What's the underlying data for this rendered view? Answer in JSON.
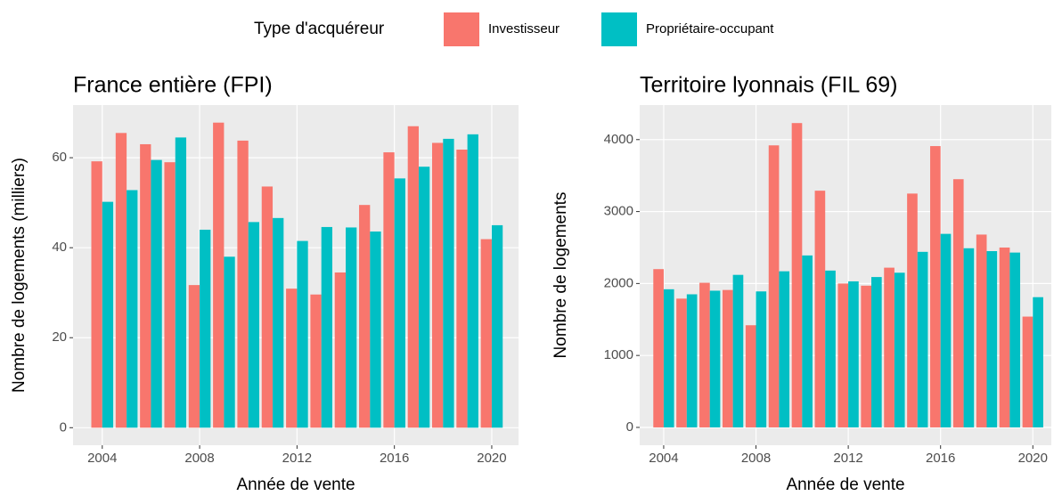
{
  "legend": {
    "title": "Type d'acquéreur"
  },
  "chart_data": [
    {
      "type": "bar",
      "title": "France entière (FPI)",
      "x_label": "Année de vente",
      "y_label": "Nombre de logements (milliers)",
      "x": [
        2004,
        2005,
        2006,
        2007,
        2008,
        2009,
        2010,
        2011,
        2012,
        2013,
        2014,
        2015,
        2016,
        2017,
        2018,
        2019,
        2020
      ],
      "series": [
        {
          "name": "Investisseur",
          "color": "#F8766D",
          "values": [
            59.2,
            65.5,
            63,
            59,
            31.7,
            67.8,
            63.8,
            53.6,
            30.9,
            29.6,
            34.5,
            49.5,
            61.2,
            67,
            63.3,
            61.8,
            41.9
          ]
        },
        {
          "name": "Propriétaire-occupant",
          "color": "#00BFC4",
          "values": [
            50.2,
            52.8,
            59.5,
            64.5,
            44,
            38,
            45.7,
            46.6,
            41.5,
            44.6,
            44.5,
            43.6,
            55.4,
            58,
            64.2,
            65.2,
            45
          ]
        }
      ],
      "xlim": [
        2002.8,
        2021.1
      ],
      "xticks": [
        2004,
        2008,
        2012,
        2016,
        2020
      ],
      "ylim": [
        -3.9,
        71.7
      ],
      "yticks": [
        0,
        20,
        40,
        60
      ],
      "grid": true
    },
    {
      "type": "bar",
      "title": "Territoire lyonnais (FIL 69)",
      "x_label": "Année de vente",
      "y_label": "Nombre de logements",
      "x": [
        2004,
        2005,
        2006,
        2007,
        2008,
        2009,
        2010,
        2011,
        2012,
        2013,
        2014,
        2015,
        2016,
        2017,
        2018,
        2019,
        2020
      ],
      "series": [
        {
          "name": "Investisseur",
          "color": "#F8766D",
          "values": [
            2200,
            1790,
            2010,
            1910,
            1420,
            3920,
            4230,
            3290,
            2000,
            1970,
            2220,
            3250,
            3910,
            3450,
            2680,
            2500,
            1540
          ]
        },
        {
          "name": "Propriétaire-occupant",
          "color": "#00BFC4",
          "values": [
            1920,
            1850,
            1900,
            2120,
            1890,
            2170,
            2390,
            2180,
            2030,
            2090,
            2150,
            2440,
            2690,
            2490,
            2450,
            2430,
            1810
          ]
        }
      ],
      "xlim": [
        2002.96,
        2020.8
      ],
      "xticks": [
        2004,
        2008,
        2012,
        2016,
        2020
      ],
      "ylim": [
        -248,
        4480
      ],
      "yticks": [
        0,
        1000,
        2000,
        3000,
        4000
      ],
      "grid": true
    }
  ]
}
